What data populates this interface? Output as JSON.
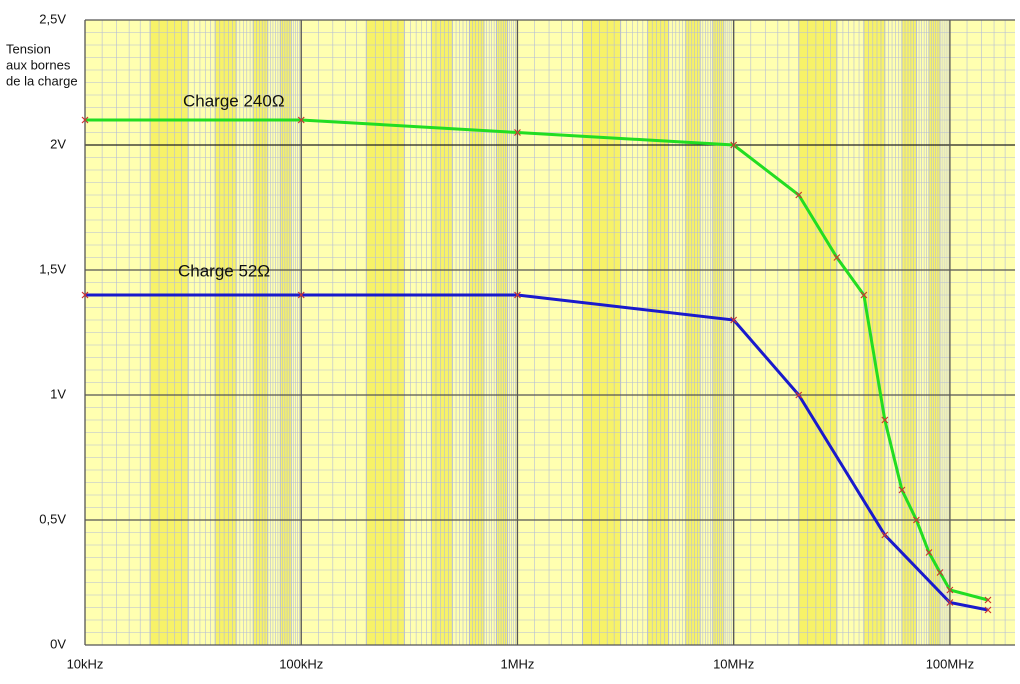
{
  "chart_data": {
    "type": "line",
    "y_label": [
      "Tension",
      "aux bornes",
      "de la charge"
    ],
    "xscale": "log",
    "xlim": [
      10000,
      200000000
    ],
    "xticks": [
      {
        "value": 10000,
        "label": "10kHz"
      },
      {
        "value": 100000,
        "label": "100kHz"
      },
      {
        "value": 1000000,
        "label": "1MHz"
      },
      {
        "value": 10000000,
        "label": "10MHz"
      },
      {
        "value": 100000000,
        "label": "100MHz"
      }
    ],
    "ylim": [
      0,
      2.5
    ],
    "yticks": [
      {
        "value": 0,
        "label": "0V"
      },
      {
        "value": 0.5,
        "label": "0,5V"
      },
      {
        "value": 1,
        "label": "1V"
      },
      {
        "value": 1.5,
        "label": "1,5V"
      },
      {
        "value": 2,
        "label": "2V"
      },
      {
        "value": 2.5,
        "label": "2,5V"
      }
    ],
    "grid": true,
    "series": [
      {
        "name": "Charge 240Ω",
        "color": "#22dd22",
        "marker_color": "#cc3333",
        "x": [
          10000,
          100000,
          1000000,
          10000000,
          20000000,
          30000000,
          40000000,
          50000000,
          60000000,
          70000000,
          80000000,
          90000000,
          100000000,
          150000000
        ],
        "values": [
          2.1,
          2.1,
          2.05,
          2.0,
          1.8,
          1.55,
          1.4,
          0.9,
          0.62,
          0.5,
          0.37,
          0.29,
          0.22,
          0.18
        ]
      },
      {
        "name": "Charge 52Ω",
        "color": "#1a1acc",
        "marker_color": "#cc3333",
        "x": [
          10000,
          100000,
          1000000,
          10000000,
          20000000,
          50000000,
          100000000,
          150000000
        ],
        "values": [
          1.4,
          1.4,
          1.4,
          1.3,
          1.0,
          0.44,
          0.17,
          0.14
        ]
      }
    ]
  }
}
